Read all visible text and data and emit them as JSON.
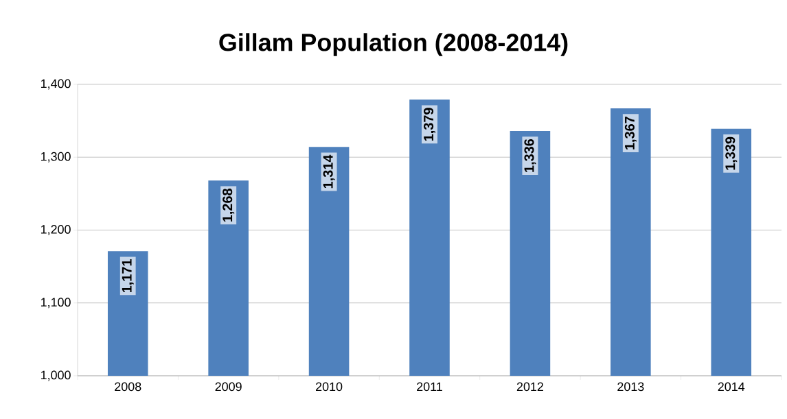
{
  "chart_data": {
    "type": "bar",
    "title": "Gillam Population (2008-2014)",
    "categories": [
      "2008",
      "2009",
      "2010",
      "2011",
      "2012",
      "2013",
      "2014"
    ],
    "values": [
      1171,
      1268,
      1314,
      1379,
      1336,
      1367,
      1339
    ],
    "value_labels": [
      "1,171",
      "1,268",
      "1,314",
      "1,379",
      "1,336",
      "1,367",
      "1,339"
    ],
    "color": "#4f81bd",
    "ylim": [
      1000,
      1400
    ],
    "yticks": [
      {
        "value": 1000,
        "label": "1,000"
      },
      {
        "value": 1100,
        "label": "1,100"
      },
      {
        "value": 1200,
        "label": "1,200"
      },
      {
        "value": 1300,
        "label": "1,300"
      },
      {
        "value": 1400,
        "label": "1,400"
      }
    ],
    "grid": "y"
  }
}
